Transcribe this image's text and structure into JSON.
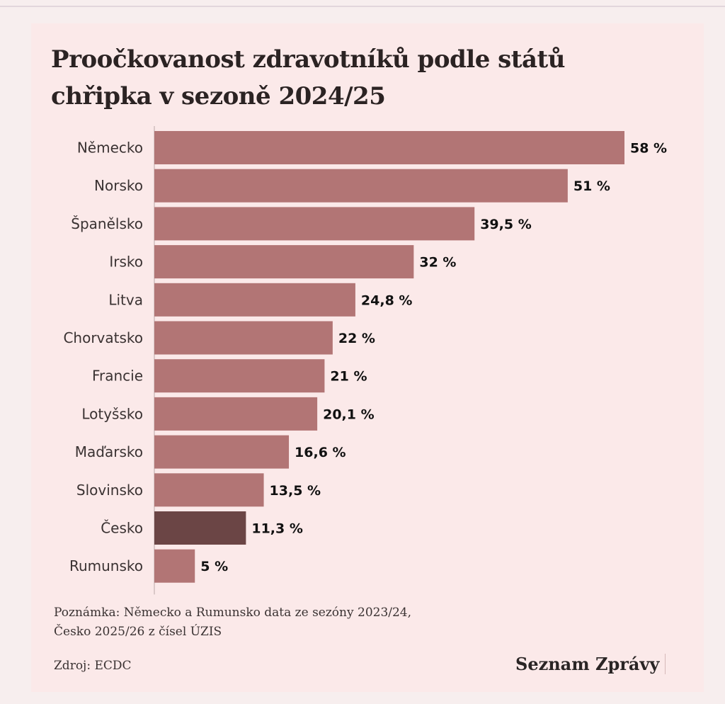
{
  "title": {
    "line1": "Proočkovanost zdravotníků podle států",
    "line2": "chřipka v sezoně 2024/25"
  },
  "note": {
    "line1": "Poznámka: Německo a Rumunsko data ze sezóny 2023/24,",
    "line2": "Česko 2025/26 z čísel ÚZIS"
  },
  "source": "Zdroj: ECDC",
  "brand": "Seznam Zprávy",
  "colors": {
    "bar": "#b27575",
    "highlight": "#6b4545",
    "label": "#3a3232",
    "value": "#111111",
    "axis": "#b9a7a7"
  },
  "chart_data": {
    "type": "bar",
    "orientation": "horizontal",
    "categories": [
      "Německo",
      "Norsko",
      "Španělsko",
      "Irsko",
      "Litva",
      "Chorvatsko",
      "Francie",
      "Lotyšsko",
      "Maďarsko",
      "Slovinsko",
      "Česko",
      "Rumunsko"
    ],
    "values": [
      58,
      51,
      39.5,
      32,
      24.8,
      22,
      21,
      20.1,
      16.6,
      13.5,
      11.3,
      5
    ],
    "value_labels": [
      "58 %",
      "51 %",
      "39,5 %",
      "32 %",
      "24,8 %",
      "22 %",
      "21 %",
      "20,1 %",
      "16,6 %",
      "13,5 %",
      "11,3 %",
      "5 %"
    ],
    "highlight_category": "Česko",
    "xlim": [
      0,
      58
    ],
    "grid": false,
    "legend": "none",
    "title": "Proočkovanost zdravotníků podle států chřipka v sezoně 2024/25"
  }
}
